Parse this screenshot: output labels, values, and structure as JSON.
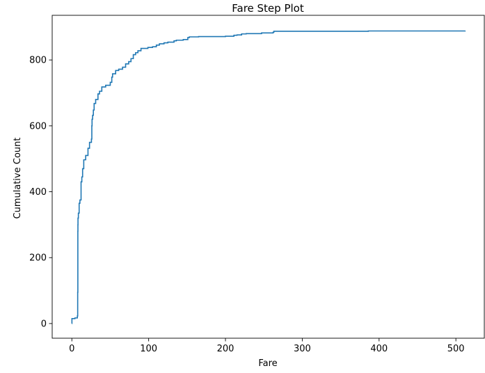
{
  "chart_data": {
    "type": "line",
    "title": "Fare Step Plot",
    "xlabel": "Fare",
    "ylabel": "Cumulative Count",
    "xlim": [
      -25.6,
      537.9
    ],
    "ylim": [
      -44.5,
      935.5
    ],
    "xticks": [
      0,
      100,
      200,
      300,
      400,
      500
    ],
    "yticks": [
      0,
      200,
      400,
      600,
      800
    ],
    "grid": false,
    "line_color": "#1f77b4",
    "series": [
      {
        "x": [
          0,
          0.1,
          4,
          7.2,
          7.6,
          7.8,
          7.9,
          8.0,
          8.5,
          9.5,
          10.5,
          12,
          13,
          14,
          15.5,
          18,
          21,
          23,
          25.5,
          26,
          26.3,
          27,
          28,
          29,
          31,
          34,
          36,
          39,
          44,
          50,
          52,
          53,
          57,
          61,
          66,
          70,
          74,
          77,
          80,
          83,
          86,
          90,
          99,
          105,
          110,
          114,
          120,
          125,
          133,
          136,
          145,
          151,
          153,
          165,
          200,
          211,
          215,
          221,
          227,
          247,
          262,
          263,
          386,
          512
        ],
        "y": [
          0,
          15,
          17,
          23,
          95,
          280,
          300,
          320,
          335,
          365,
          375,
          430,
          445,
          470,
          497,
          510,
          532,
          550,
          560,
          600,
          620,
          632,
          648,
          668,
          680,
          697,
          705,
          718,
          723,
          732,
          748,
          758,
          768,
          772,
          778,
          788,
          795,
          804,
          816,
          822,
          828,
          835,
          838,
          840,
          845,
          849,
          852,
          854,
          858,
          860,
          862,
          868,
          870,
          871,
          872,
          875,
          876,
          879,
          880,
          882,
          884,
          887,
          888,
          889
        ]
      }
    ]
  }
}
